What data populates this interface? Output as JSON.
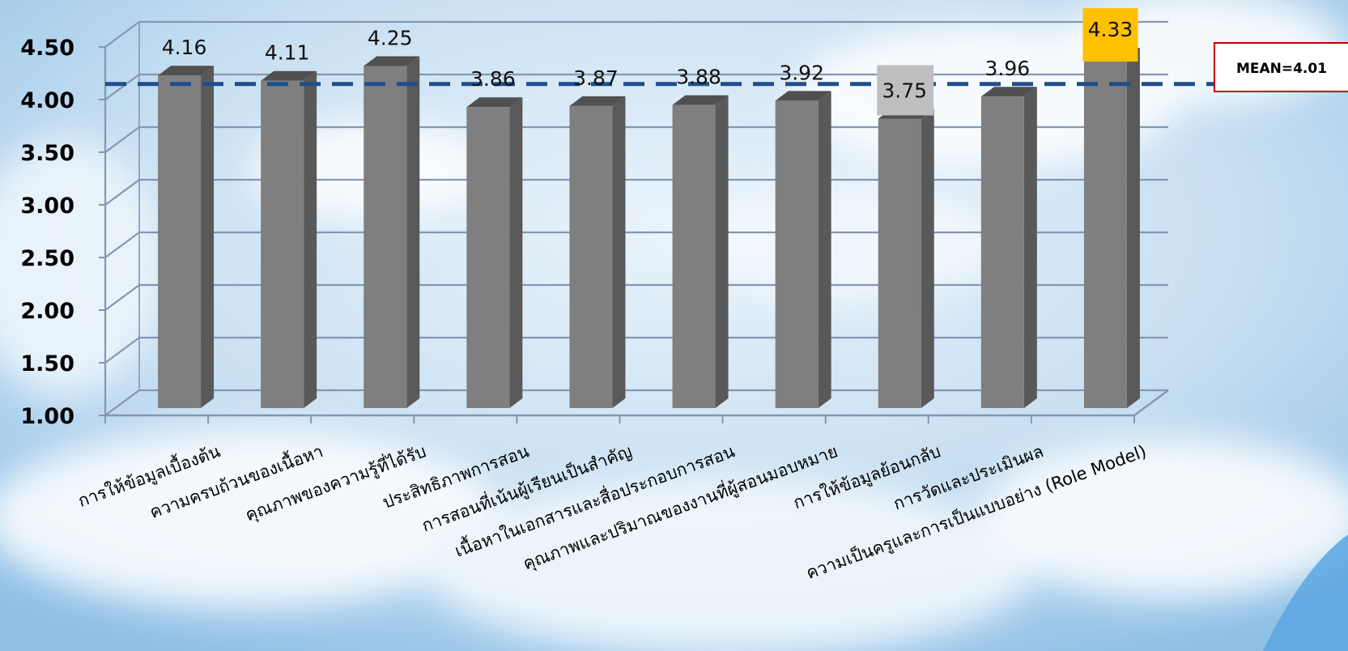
{
  "chart_data": {
    "type": "bar",
    "categories": [
      "การให้ข้อมูลเบื้องต้น",
      "ความครบถ้วนของเนื้อหา",
      "คุณภาพของความรู้ที่ได้รับ",
      "ประสิทธิภาพการสอน",
      "การสอนที่เน้นผู้เรียนเป็นสำคัญ",
      "เนื้อหาในเอกสารและสื่อประกอบการสอน",
      "คุณภาพและปริมาณของงานที่ผู้สอนมอบหมาย",
      "การให้ข้อมูลย้อนกลับ",
      "การวัดและประเมินผล",
      "ความเป็นครูและการเป็นแบบอย่าง (Role Model)"
    ],
    "values": [
      4.16,
      4.11,
      4.25,
      3.86,
      3.87,
      3.88,
      3.92,
      3.75,
      3.96,
      4.33
    ],
    "value_labels": [
      "4.16",
      "4.11",
      "4.25",
      "3.86",
      "3.87",
      "3.88",
      "3.92",
      "3.75",
      "3.96",
      "4.33"
    ],
    "ylim": [
      1.0,
      4.5
    ],
    "y_ticks": [
      "1.00",
      "1.50",
      "2.00",
      "2.50",
      "3.00",
      "3.50",
      "4.00",
      "4.50"
    ],
    "title": "",
    "xlabel": "",
    "ylabel": "",
    "mean": 4.01,
    "mean_label": "MEAN=4.01",
    "highlight": {
      "max_index": 9,
      "min_index": 7
    },
    "grid": true,
    "colors": {
      "bar_front": "#7f7f7f",
      "bar_side": "#595959",
      "bar_top": "#505050",
      "grid": "#8596b4",
      "mean_line": "#1f4e8c",
      "max_highlight": "#ffc000",
      "min_highlight": "#bfbfbf",
      "mean_box_border": "#c00000"
    }
  }
}
